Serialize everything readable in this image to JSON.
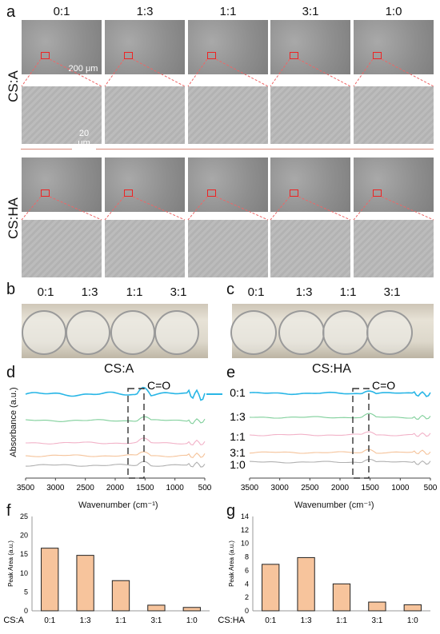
{
  "panel_a": {
    "label": "a",
    "ratios": [
      "0:1",
      "1:3",
      "1:1",
      "3:1",
      "1:0"
    ],
    "row_labels": [
      "CS:A",
      "CS:HA"
    ],
    "scalebar_low": "200 μm",
    "scalebar_high": "20 μm"
  },
  "panel_b": {
    "label": "b",
    "ratios": [
      "0:1",
      "1:3",
      "1:1",
      "3:1"
    ]
  },
  "panel_c": {
    "label": "c",
    "ratios": [
      "0:1",
      "1:3",
      "1:1",
      "3:1"
    ]
  },
  "spectra": {
    "ylabel": "Absorbance (a.u.)",
    "xlabel": "Wavenumber (cm⁻¹)",
    "co_label": "C=O",
    "legend": [
      "0:1",
      "1:3",
      "1:1",
      "3:1",
      "1:0"
    ],
    "colors": [
      "#29b6e6",
      "#7fcf9a",
      "#f2b2c8",
      "#f5c39a",
      "#b0b0b0"
    ],
    "d": {
      "label": "d",
      "title": "CS:A"
    },
    "e": {
      "label": "e",
      "title": "CS:HA"
    },
    "xticks": [
      "3500",
      "3000",
      "2500",
      "2000",
      "1500",
      "1000",
      "500"
    ]
  },
  "chart_data": [
    {
      "type": "bar",
      "label": "f",
      "xlabel": "CS:A",
      "ylabel": "Peak Area (a.u.)",
      "categories": [
        "0:1",
        "1:3",
        "1:1",
        "3:1",
        "1:0"
      ],
      "values": [
        16.6,
        14.7,
        8.0,
        1.5,
        0.9
      ],
      "ylim": [
        0,
        25
      ],
      "yticks": [
        0,
        5,
        10,
        15,
        20,
        25
      ],
      "bar_color": "#f7c49c"
    },
    {
      "type": "bar",
      "label": "g",
      "xlabel": "CS:HA",
      "ylabel": "Peak Area (a.u.)",
      "categories": [
        "0:1",
        "1:3",
        "1:1",
        "3:1",
        "1:0"
      ],
      "values": [
        6.9,
        7.9,
        4.0,
        1.3,
        0.9
      ],
      "ylim": [
        0,
        14
      ],
      "yticks": [
        0,
        2,
        4,
        6,
        8,
        10,
        12,
        14
      ],
      "bar_color": "#f7c49c"
    }
  ]
}
